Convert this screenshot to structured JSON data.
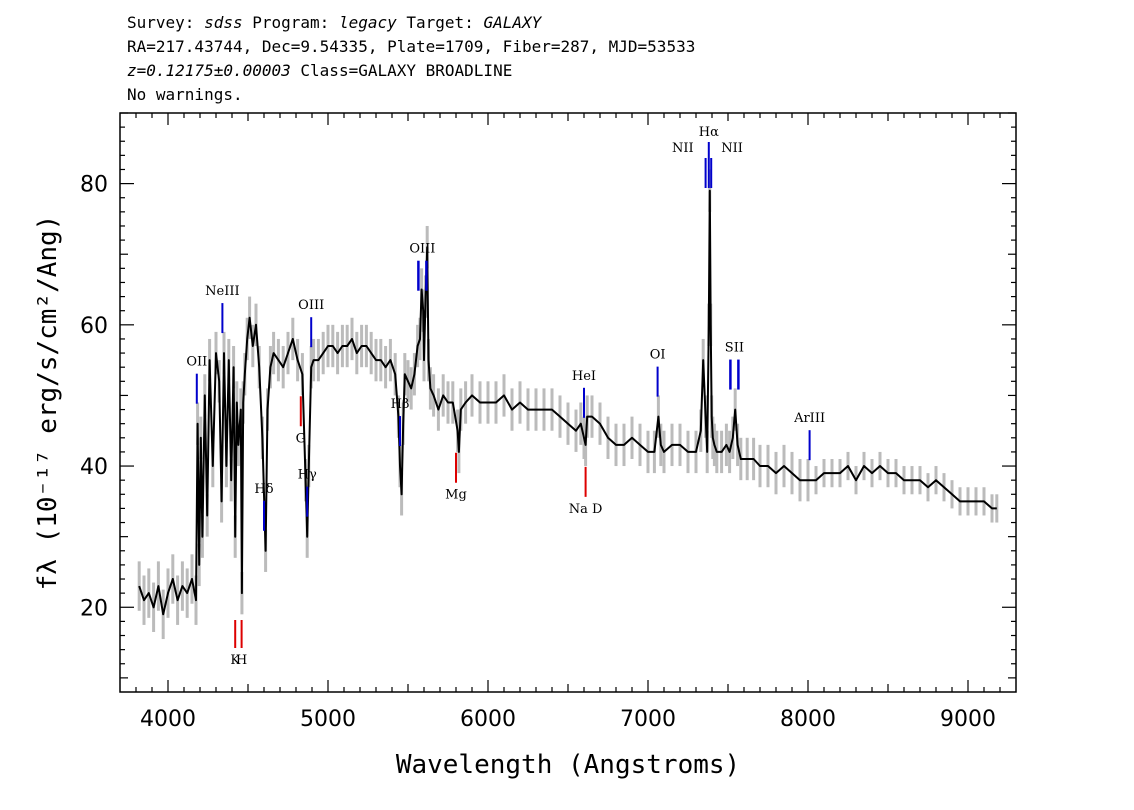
{
  "header": {
    "survey_label": "Survey:",
    "survey": "sdss",
    "program_label": "Program:",
    "program": "legacy",
    "target_label": "Target:",
    "target": "GALAXY",
    "line2": "RA=217.43744, Dec=9.54335, Plate=1709, Fiber=287, MJD=53533",
    "redshift": "z=0.12175±0.00003",
    "class_text": "Class=GALAXY BROADLINE",
    "warnings": "No warnings."
  },
  "chart_data": {
    "type": "line",
    "title": "",
    "xlabel": "Wavelength (Angstroms)",
    "ylabel": "fλ (10⁻¹⁷ erg/s/cm²/Ang)",
    "xlim": [
      3700,
      9300
    ],
    "ylim": [
      8,
      90
    ],
    "x_ticks": [
      4000,
      5000,
      6000,
      7000,
      8000,
      9000
    ],
    "y_ticks": [
      20,
      40,
      60,
      80
    ],
    "colors": {
      "flux": "#000000",
      "error": "#bbbbbb",
      "emission": "#0000cc",
      "absorption": "#dd0000"
    },
    "series": [
      {
        "name": "flux",
        "x": [
          3820,
          3850,
          3880,
          3910,
          3940,
          3970,
          4000,
          4030,
          4060,
          4090,
          4120,
          4150,
          4175,
          4185,
          4195,
          4205,
          4215,
          4230,
          4245,
          4260,
          4280,
          4300,
          4320,
          4335,
          4350,
          4365,
          4380,
          4395,
          4410,
          4420,
          4430,
          4440,
          4455,
          4462,
          4470,
          4480,
          4495,
          4510,
          4530,
          4550,
          4570,
          4590,
          4610,
          4622,
          4640,
          4660,
          4690,
          4720,
          4750,
          4780,
          4810,
          4840,
          4860,
          4870,
          4880,
          4895,
          4910,
          4940,
          4970,
          5000,
          5030,
          5060,
          5090,
          5120,
          5150,
          5180,
          5210,
          5240,
          5270,
          5300,
          5330,
          5360,
          5390,
          5420,
          5440,
          5450,
          5460,
          5470,
          5480,
          5500,
          5520,
          5540,
          5560,
          5575,
          5585,
          5595,
          5600,
          5610,
          5620,
          5628,
          5640,
          5660,
          5690,
          5720,
          5750,
          5780,
          5810,
          5818,
          5830,
          5860,
          5900,
          5950,
          6000,
          6050,
          6100,
          6150,
          6200,
          6250,
          6300,
          6350,
          6400,
          6450,
          6500,
          6550,
          6580,
          6600,
          6610,
          6620,
          6650,
          6700,
          6750,
          6800,
          6850,
          6900,
          6950,
          7000,
          7040,
          7065,
          7080,
          7100,
          7150,
          7200,
          7250,
          7300,
          7330,
          7345,
          7360,
          7370,
          7380,
          7386,
          7392,
          7398,
          7405,
          7415,
          7430,
          7460,
          7490,
          7510,
          7530,
          7545,
          7560,
          7580,
          7620,
          7660,
          7700,
          7750,
          7800,
          7850,
          7900,
          7950,
          8000,
          8050,
          8100,
          8150,
          8200,
          8250,
          8300,
          8350,
          8400,
          8450,
          8500,
          8550,
          8600,
          8650,
          8700,
          8750,
          8800,
          8850,
          8900,
          8950,
          9000,
          9050,
          9100,
          9150,
          9180
        ],
        "y": [
          23,
          21,
          22,
          20,
          23,
          19,
          22,
          24,
          21,
          23,
          22,
          24,
          21,
          46,
          26,
          44,
          30,
          50,
          33,
          55,
          40,
          56,
          52,
          35,
          56,
          40,
          55,
          38,
          54,
          30,
          49,
          43,
          48,
          22,
          49,
          53,
          58,
          61,
          57,
          60,
          54,
          44,
          28,
          48,
          54,
          56,
          55,
          54,
          56,
          58,
          55,
          53,
          38,
          30,
          40,
          54,
          55,
          55,
          56,
          57,
          57,
          56,
          57,
          57,
          58,
          56,
          57,
          57,
          56,
          55,
          55,
          54,
          55,
          53,
          47,
          40,
          36,
          46,
          53,
          52,
          51,
          53,
          57,
          58,
          65,
          62,
          55,
          64,
          71,
          55,
          51,
          50,
          48,
          50,
          49,
          49,
          45,
          42,
          48,
          49,
          50,
          49,
          49,
          49,
          50,
          48,
          49,
          48,
          48,
          48,
          48,
          47,
          46,
          45,
          46,
          44,
          43,
          47,
          47,
          46,
          44,
          43,
          43,
          44,
          43,
          42,
          42,
          47,
          43,
          42,
          43,
          43,
          42,
          42,
          45,
          55,
          47,
          42,
          60,
          79,
          60,
          47,
          44,
          43,
          42,
          42,
          43,
          42,
          44,
          48,
          43,
          41,
          41,
          41,
          40,
          40,
          39,
          40,
          39,
          38,
          38,
          38,
          39,
          39,
          39,
          40,
          38,
          40,
          39,
          40,
          39,
          39,
          38,
          38,
          38,
          37,
          38,
          37,
          36,
          35,
          35,
          35,
          35,
          34,
          34
        ]
      },
      {
        "name": "error",
        "values": [
          3.5,
          3,
          3,
          3,
          3,
          3,
          3,
          3,
          3,
          3,
          3,
          3,
          3,
          2,
          2
        ]
      }
    ],
    "line_markers": [
      {
        "label": "OII",
        "x": 4180,
        "kind": "emission",
        "sub": ""
      },
      {
        "label": "NeIII",
        "x": 4340,
        "kind": "emission",
        "sub": ""
      },
      {
        "label": "Hδ",
        "x": 4600,
        "kind": "emission",
        "sub": ""
      },
      {
        "label": "Hγ",
        "x": 4870,
        "kind": "emission",
        "sub": ""
      },
      {
        "label": "OIII",
        "x": 4895,
        "kind": "emission",
        "sub": ""
      },
      {
        "label": "Hβ",
        "x": 5450,
        "kind": "emission",
        "sub": ""
      },
      {
        "label": "OIII",
        "x": 5590,
        "kind": "emission",
        "sub": "double"
      },
      {
        "label": "HeI",
        "x": 6600,
        "kind": "emission",
        "sub": ""
      },
      {
        "label": "OI",
        "x": 7060,
        "kind": "emission",
        "sub": ""
      },
      {
        "label": "NII",
        "x": 7360,
        "kind": "emission",
        "sub": "left"
      },
      {
        "label": "Hα",
        "x": 7380,
        "kind": "emission",
        "sub": "top"
      },
      {
        "label": "NII",
        "x": 7395,
        "kind": "emission",
        "sub": "right"
      },
      {
        "label": "SII",
        "x": 7540,
        "kind": "emission",
        "sub": "double"
      },
      {
        "label": "ArIII",
        "x": 8010,
        "kind": "emission",
        "sub": ""
      },
      {
        "label": "K",
        "x": 4420,
        "kind": "absorption",
        "sub": ""
      },
      {
        "label": "H",
        "x": 4460,
        "kind": "absorption",
        "sub": ""
      },
      {
        "label": "G",
        "x": 4830,
        "kind": "absorption",
        "sub": ""
      },
      {
        "label": "Mg",
        "x": 5800,
        "kind": "absorption",
        "sub": ""
      },
      {
        "label": "Na D",
        "x": 6610,
        "kind": "absorption",
        "sub": ""
      }
    ]
  }
}
